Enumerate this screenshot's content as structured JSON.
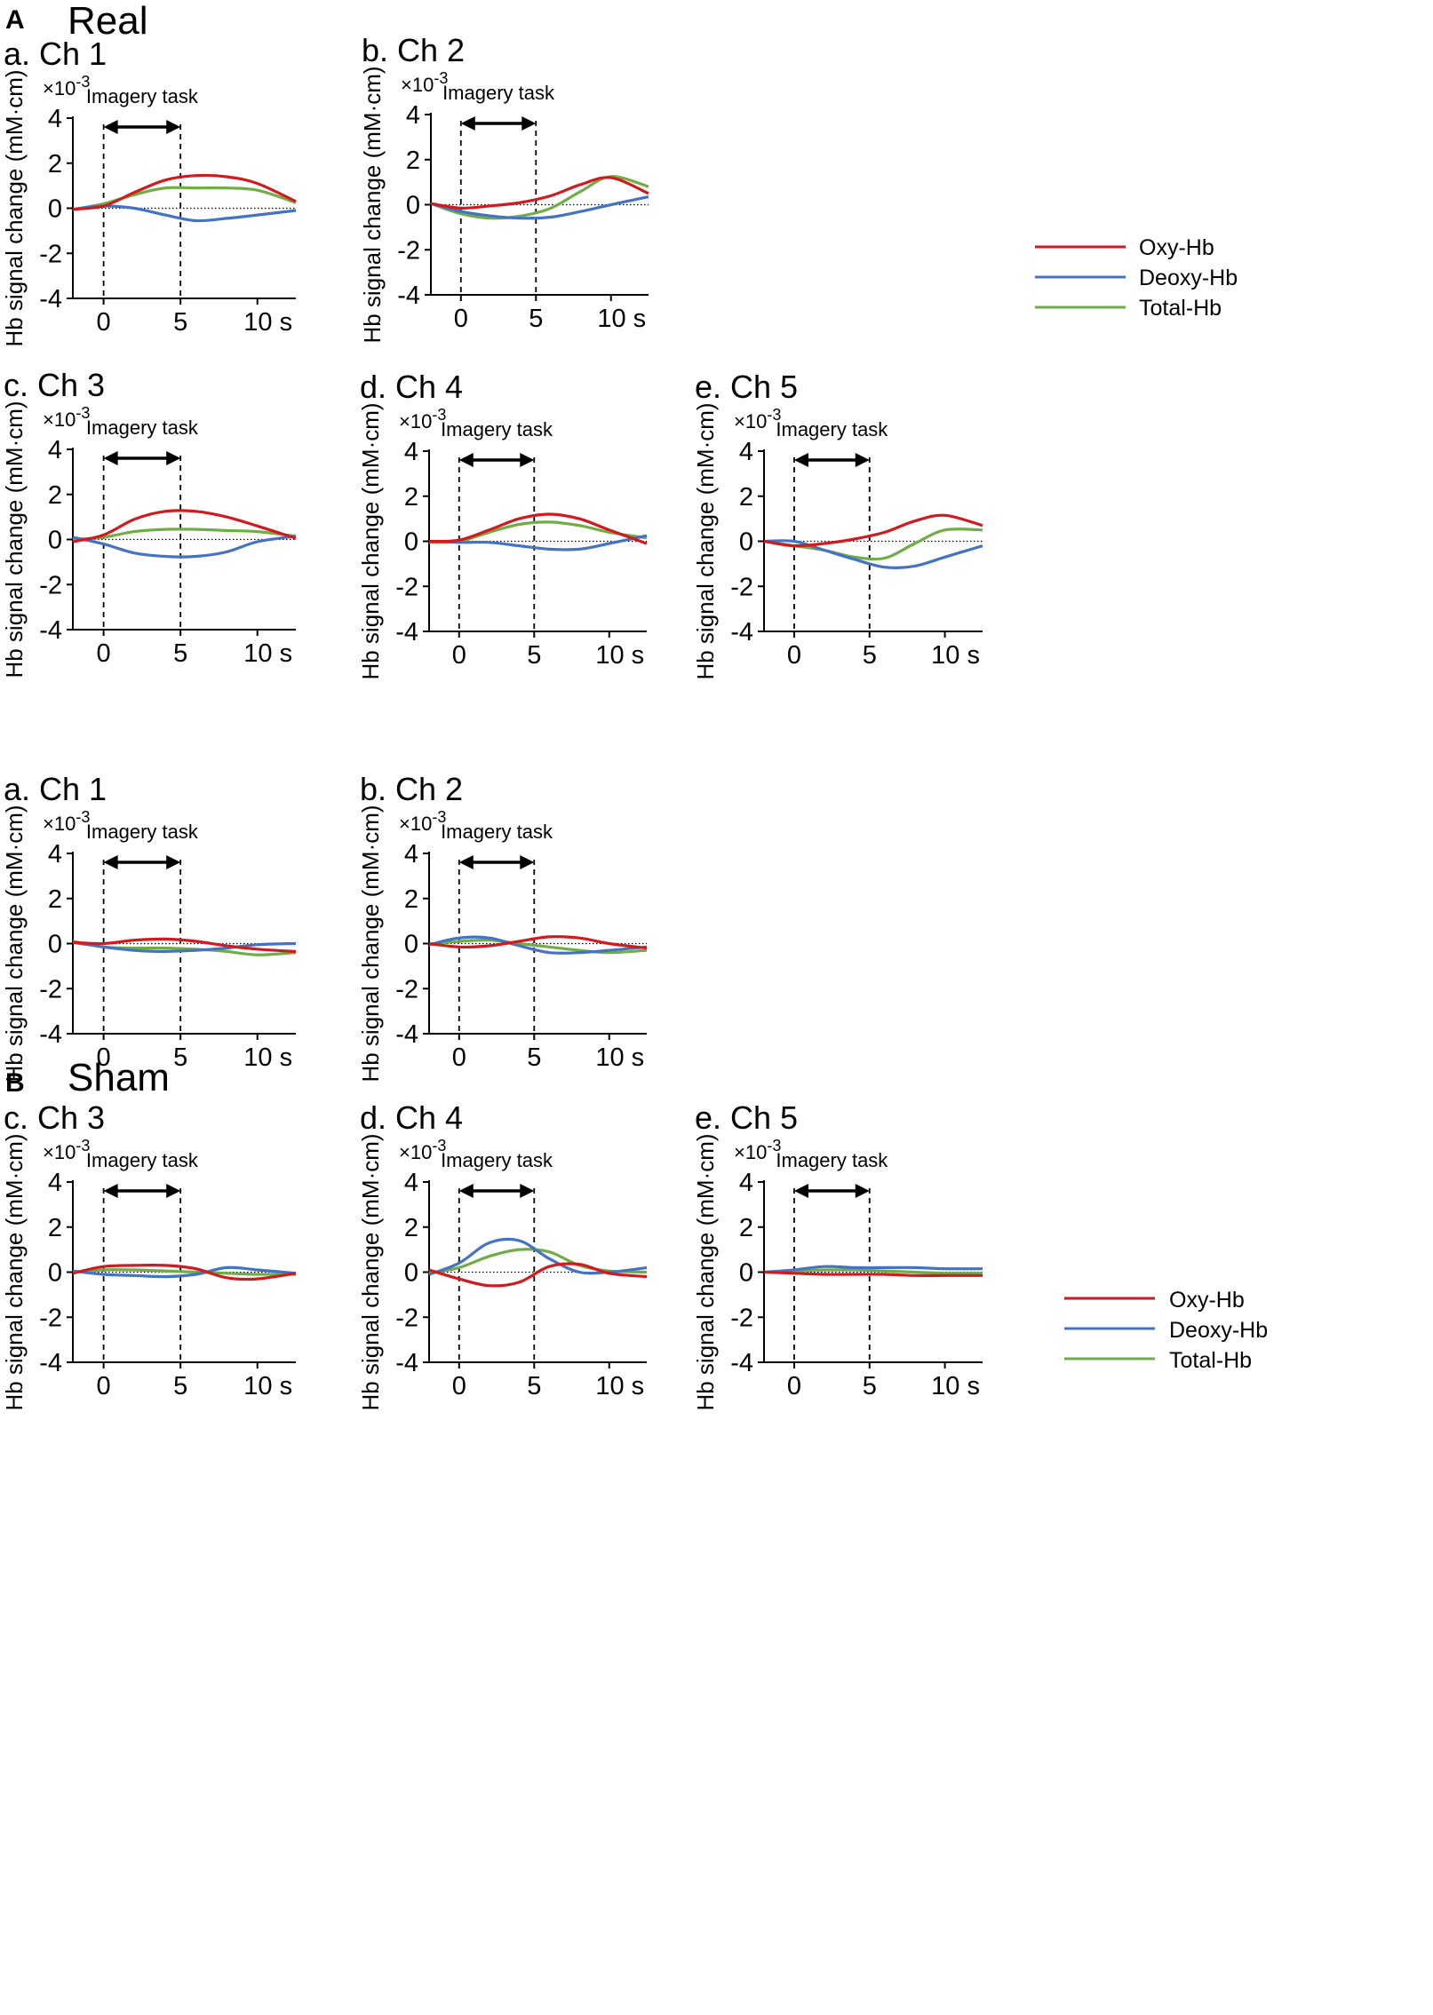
{
  "sections": [
    {
      "letter": "A",
      "title": "Real"
    },
    {
      "letter": "B",
      "title": "Sham"
    }
  ],
  "legend": [
    {
      "label": "Oxy-Hb",
      "color": "#d21a1e"
    },
    {
      "label": "Deoxy-Hb",
      "color": "#4472c4"
    },
    {
      "label": "Total-Hb",
      "color": "#70ad47"
    }
  ],
  "chart_data": [
    {
      "type": "line",
      "group": "Real",
      "title": "a. Ch 1",
      "xlabel": "s",
      "ylabel": "Hb signal change (mM·cm)",
      "y_scale_label": "×10-3",
      "xlim": [
        -2,
        12.5
      ],
      "ylim": [
        -4,
        4
      ],
      "xticks": [
        "0",
        "5",
        "10 s"
      ],
      "yticks": [
        "4",
        "2",
        "0",
        "-2",
        "-4"
      ],
      "annotation": "Imagery task",
      "task_window": [
        0,
        5
      ],
      "x": [
        -2,
        0,
        2,
        4,
        6,
        8,
        10,
        12.5
      ],
      "series": [
        {
          "name": "Oxy-Hb",
          "values": [
            -0.05,
            0.1,
            0.7,
            1.25,
            1.45,
            1.4,
            1.1,
            0.3
          ]
        },
        {
          "name": "Deoxy-Hb",
          "values": [
            -0.05,
            0.1,
            0.0,
            -0.3,
            -0.55,
            -0.45,
            -0.3,
            -0.1
          ]
        },
        {
          "name": "Total-Hb",
          "values": [
            -0.05,
            0.2,
            0.6,
            0.9,
            0.9,
            0.9,
            0.8,
            0.25
          ]
        }
      ]
    },
    {
      "type": "line",
      "group": "Real",
      "title": "b. Ch 2",
      "xlabel": "s",
      "ylabel": "Hb signal change (mM·cm)",
      "y_scale_label": "×10-3",
      "xlim": [
        -2,
        12.5
      ],
      "ylim": [
        -4,
        4
      ],
      "xticks": [
        "0",
        "5",
        "10 s"
      ],
      "yticks": [
        "4",
        "2",
        "0",
        "-2",
        "-4"
      ],
      "annotation": "Imagery task",
      "task_window": [
        0,
        5
      ],
      "x": [
        -2,
        0,
        2,
        4,
        6,
        8,
        10,
        12.5
      ],
      "series": [
        {
          "name": "Oxy-Hb",
          "values": [
            0.05,
            -0.15,
            -0.05,
            0.1,
            0.4,
            0.9,
            1.2,
            0.5
          ]
        },
        {
          "name": "Deoxy-Hb",
          "values": [
            0.05,
            -0.3,
            -0.5,
            -0.6,
            -0.55,
            -0.3,
            0.0,
            0.35
          ]
        },
        {
          "name": "Total-Hb",
          "values": [
            0.05,
            -0.4,
            -0.6,
            -0.5,
            -0.15,
            0.6,
            1.25,
            0.8
          ]
        }
      ]
    },
    {
      "type": "line",
      "group": "Real",
      "title": "c. Ch 3",
      "xlabel": "s",
      "ylabel": "Hb signal change (mM·cm)",
      "y_scale_label": "×10-3",
      "xlim": [
        -2,
        12.5
      ],
      "ylim": [
        -4,
        4
      ],
      "xticks": [
        "0",
        "5",
        "10 s"
      ],
      "yticks": [
        "4",
        "2",
        "0",
        "-2",
        "-4"
      ],
      "annotation": "Imagery task",
      "task_window": [
        0,
        5
      ],
      "x": [
        -2,
        0,
        2,
        4,
        6,
        8,
        10,
        12.5
      ],
      "series": [
        {
          "name": "Oxy-Hb",
          "values": [
            -0.1,
            0.2,
            0.9,
            1.25,
            1.25,
            1.0,
            0.6,
            0.05
          ]
        },
        {
          "name": "Deoxy-Hb",
          "values": [
            0.1,
            -0.2,
            -0.6,
            -0.75,
            -0.75,
            -0.55,
            -0.1,
            0.15
          ]
        },
        {
          "name": "Total-Hb",
          "values": [
            0.0,
            0.1,
            0.35,
            0.45,
            0.45,
            0.4,
            0.35,
            0.15
          ]
        }
      ]
    },
    {
      "type": "line",
      "group": "Real",
      "title": "d. Ch 4",
      "xlabel": "s",
      "ylabel": "Hb signal change (mM·cm)",
      "y_scale_label": "×10-3",
      "xlim": [
        -2,
        12.5
      ],
      "ylim": [
        -4,
        4
      ],
      "xticks": [
        "0",
        "5",
        "10 s"
      ],
      "yticks": [
        "4",
        "2",
        "0",
        "-2",
        "-4"
      ],
      "annotation": "Imagery task",
      "task_window": [
        0,
        5
      ],
      "x": [
        -2,
        0,
        2,
        4,
        6,
        8,
        10,
        12.5
      ],
      "series": [
        {
          "name": "Oxy-Hb",
          "values": [
            0.0,
            0.05,
            0.5,
            1.0,
            1.2,
            1.0,
            0.5,
            -0.1
          ]
        },
        {
          "name": "Deoxy-Hb",
          "values": [
            0.0,
            -0.05,
            -0.05,
            -0.2,
            -0.35,
            -0.35,
            -0.1,
            0.25
          ]
        },
        {
          "name": "Total-Hb",
          "values": [
            -0.05,
            0.0,
            0.4,
            0.75,
            0.85,
            0.7,
            0.4,
            0.15
          ]
        }
      ]
    },
    {
      "type": "line",
      "group": "Real",
      "title": "e. Ch 5",
      "xlabel": "s",
      "ylabel": "Hb signal change (mM·cm)",
      "y_scale_label": "×10-3",
      "xlim": [
        -2,
        12.5
      ],
      "ylim": [
        -4,
        4
      ],
      "xticks": [
        "0",
        "5",
        "10 s"
      ],
      "yticks": [
        "4",
        "2",
        "0",
        "-2",
        "-4"
      ],
      "annotation": "Imagery task",
      "task_window": [
        0,
        5
      ],
      "x": [
        -2,
        0,
        2,
        4,
        6,
        8,
        10,
        12.5
      ],
      "series": [
        {
          "name": "Oxy-Hb",
          "values": [
            0.0,
            -0.2,
            -0.1,
            0.1,
            0.4,
            0.9,
            1.15,
            0.7
          ]
        },
        {
          "name": "Deoxy-Hb",
          "values": [
            0.0,
            0.0,
            -0.4,
            -0.8,
            -1.15,
            -1.1,
            -0.7,
            -0.2
          ]
        },
        {
          "name": "Total-Hb",
          "values": [
            0.0,
            -0.2,
            -0.4,
            -0.7,
            -0.75,
            -0.1,
            0.5,
            0.5
          ]
        }
      ]
    },
    {
      "type": "line",
      "group": "Sham",
      "title": "a. Ch 1",
      "xlabel": "s",
      "ylabel": "Hb signal change (mM·cm)",
      "y_scale_label": "×10-3",
      "xlim": [
        -2,
        12.5
      ],
      "ylim": [
        -4,
        4
      ],
      "xticks": [
        "0",
        "5",
        "10 s"
      ],
      "yticks": [
        "4",
        "2",
        "0",
        "-2",
        "-4"
      ],
      "annotation": "Imagery task",
      "task_window": [
        0,
        5
      ],
      "x": [
        -2,
        0,
        2,
        4,
        6,
        8,
        10,
        12.5
      ],
      "series": [
        {
          "name": "Oxy-Hb",
          "values": [
            0.05,
            0.0,
            0.15,
            0.2,
            0.1,
            -0.1,
            -0.25,
            -0.35
          ]
        },
        {
          "name": "Deoxy-Hb",
          "values": [
            0.05,
            -0.15,
            -0.3,
            -0.35,
            -0.3,
            -0.2,
            -0.05,
            0.0
          ]
        },
        {
          "name": "Total-Hb",
          "values": [
            0.1,
            -0.15,
            -0.2,
            -0.2,
            -0.25,
            -0.35,
            -0.5,
            -0.4
          ]
        }
      ]
    },
    {
      "type": "line",
      "group": "Sham",
      "title": "b. Ch 2",
      "xlabel": "s",
      "ylabel": "Hb signal change (mM·cm)",
      "y_scale_label": "×10-3",
      "xlim": [
        -2,
        12.5
      ],
      "ylim": [
        -4,
        4
      ],
      "xticks": [
        "0",
        "5",
        "10 s"
      ],
      "yticks": [
        "4",
        "2",
        "0",
        "-2",
        "-4"
      ],
      "annotation": "Imagery task",
      "task_window": [
        0,
        5
      ],
      "x": [
        -2,
        0,
        2,
        4,
        6,
        8,
        10,
        12.5
      ],
      "series": [
        {
          "name": "Oxy-Hb",
          "values": [
            0.0,
            -0.15,
            -0.1,
            0.1,
            0.3,
            0.25,
            0.0,
            -0.2
          ]
        },
        {
          "name": "Deoxy-Hb",
          "values": [
            -0.05,
            0.25,
            0.25,
            -0.1,
            -0.4,
            -0.4,
            -0.3,
            -0.15
          ]
        },
        {
          "name": "Total-Hb",
          "values": [
            -0.05,
            0.1,
            0.15,
            0.0,
            -0.15,
            -0.3,
            -0.4,
            -0.3
          ]
        }
      ]
    },
    {
      "type": "line",
      "group": "Sham",
      "title": "c. Ch 3",
      "xlabel": "s",
      "ylabel": "Hb signal change (mM·cm)",
      "y_scale_label": "×10-3",
      "xlim": [
        -2,
        12.5
      ],
      "ylim": [
        -4,
        4
      ],
      "xticks": [
        "0",
        "5",
        "10 s"
      ],
      "yticks": [
        "4",
        "2",
        "0",
        "-2",
        "-4"
      ],
      "annotation": "Imagery task",
      "task_window": [
        0,
        5
      ],
      "x": [
        -2,
        0,
        2,
        4,
        6,
        8,
        10,
        12.5
      ],
      "series": [
        {
          "name": "Oxy-Hb",
          "values": [
            -0.05,
            0.25,
            0.3,
            0.3,
            0.15,
            -0.25,
            -0.3,
            -0.05
          ]
        },
        {
          "name": "Deoxy-Hb",
          "values": [
            0.05,
            -0.1,
            -0.15,
            -0.2,
            -0.1,
            0.2,
            0.1,
            -0.05
          ]
        },
        {
          "name": "Total-Hb",
          "values": [
            0.0,
            0.1,
            0.1,
            0.05,
            0.0,
            -0.05,
            -0.1,
            -0.1
          ]
        }
      ]
    },
    {
      "type": "line",
      "group": "Sham",
      "title": "d. Ch 4",
      "xlabel": "s",
      "ylabel": "Hb signal change (mM·cm)",
      "y_scale_label": "×10-3",
      "xlim": [
        -2,
        12.5
      ],
      "ylim": [
        -4,
        4
      ],
      "xticks": [
        "0",
        "5",
        "10 s"
      ],
      "yticks": [
        "4",
        "2",
        "0",
        "-2",
        "-4"
      ],
      "annotation": "Imagery task",
      "task_window": [
        0,
        5
      ],
      "x": [
        -2,
        0,
        2,
        4,
        6,
        8,
        10,
        12.5
      ],
      "series": [
        {
          "name": "Oxy-Hb",
          "values": [
            0.1,
            -0.3,
            -0.6,
            -0.45,
            0.25,
            0.35,
            -0.05,
            -0.2
          ]
        },
        {
          "name": "Deoxy-Hb",
          "values": [
            -0.1,
            0.4,
            1.3,
            1.4,
            0.6,
            0.0,
            0.0,
            0.2
          ]
        },
        {
          "name": "Total-Hb",
          "values": [
            -0.05,
            0.2,
            0.7,
            1.0,
            0.9,
            0.3,
            0.05,
            0.0
          ]
        }
      ]
    },
    {
      "type": "line",
      "group": "Sham",
      "title": "e. Ch 5",
      "xlabel": "s",
      "ylabel": "Hb signal change (mM·cm)",
      "y_scale_label": "×10-3",
      "xlim": [
        -2,
        12.5
      ],
      "ylim": [
        -4,
        4
      ],
      "xticks": [
        "0",
        "5",
        "10 s"
      ],
      "yticks": [
        "4",
        "2",
        "0",
        "-2",
        "-4"
      ],
      "annotation": "Imagery task",
      "task_window": [
        0,
        5
      ],
      "x": [
        -2,
        0,
        2,
        4,
        6,
        8,
        10,
        12.5
      ],
      "series": [
        {
          "name": "Oxy-Hb",
          "values": [
            0.0,
            -0.05,
            -0.1,
            -0.1,
            -0.1,
            -0.15,
            -0.15,
            -0.15
          ]
        },
        {
          "name": "Deoxy-Hb",
          "values": [
            0.0,
            0.1,
            0.25,
            0.2,
            0.2,
            0.2,
            0.15,
            0.15
          ]
        },
        {
          "name": "Total-Hb",
          "values": [
            0.0,
            0.05,
            0.1,
            0.1,
            0.05,
            0.0,
            -0.05,
            -0.05
          ]
        }
      ]
    }
  ]
}
